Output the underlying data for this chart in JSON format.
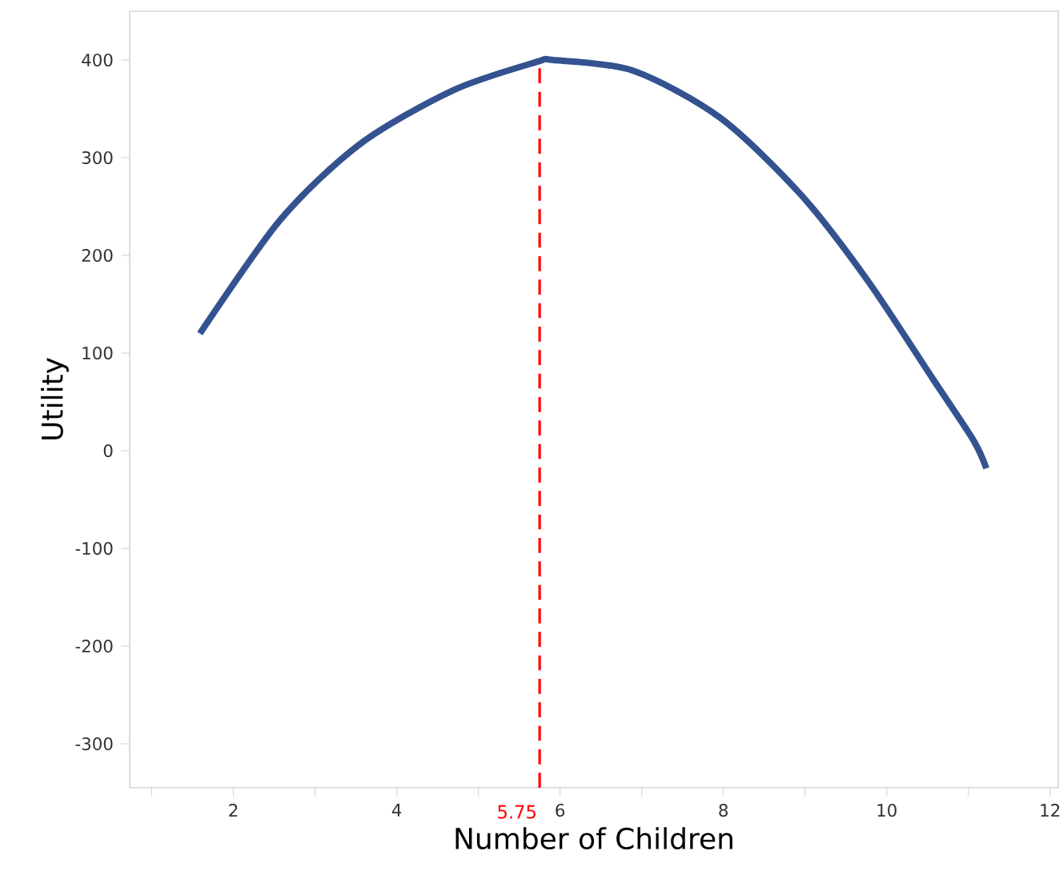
{
  "chart_data": {
    "type": "line",
    "xlabel": "Number of Children",
    "ylabel": "Utility",
    "series": [
      {
        "color": "#34528f",
        "x": [
          1.59,
          2.57,
          3.55,
          4.69,
          5.71,
          5.92,
          6.9,
          7.96,
          8.94,
          9.76,
          10.57,
          11.06,
          11.22
        ],
        "values": [
          120,
          236,
          314,
          369,
          398,
          400,
          389,
          341,
          263,
          175,
          73,
          11,
          -18
        ]
      }
    ],
    "xlim": [
      0.73,
      12.1
    ],
    "ylim": [
      -345,
      450
    ],
    "xticks": [
      {
        "value": 1,
        "label": null
      },
      2,
      {
        "value": 3,
        "label": null
      },
      4,
      {
        "value": 5,
        "label": null
      },
      6,
      {
        "value": 7,
        "label": null
      },
      8,
      {
        "value": 9,
        "label": null
      },
      10,
      {
        "value": 11,
        "label": null
      },
      12
    ],
    "yticks": [
      -300,
      -200,
      -100,
      0,
      100,
      200,
      300,
      400
    ],
    "ref_lines": [
      {
        "axis": "x",
        "value": 5.75,
        "label": "5.75",
        "color": "#ff0000",
        "line_style": "dashed"
      }
    ],
    "grid": false,
    "marker": "none",
    "line_style": "solid"
  }
}
